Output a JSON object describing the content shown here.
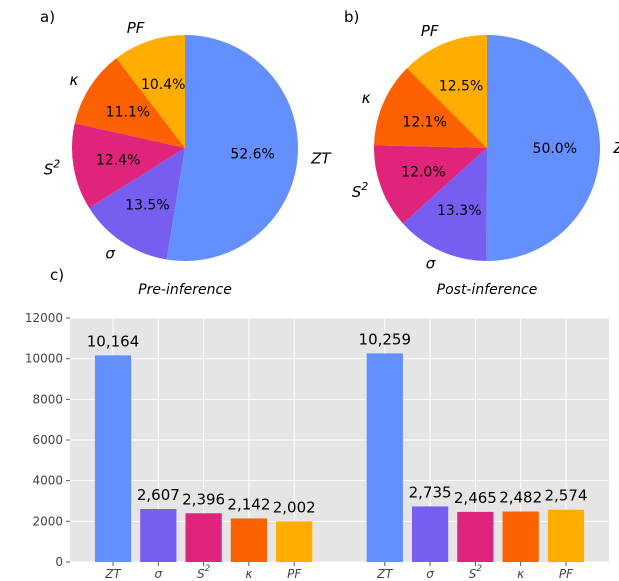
{
  "chart_data": [
    {
      "panel_label": "a)",
      "type": "pie",
      "caption": "Pre-inference",
      "slices": [
        {
          "label": "PF",
          "value": 10.4,
          "pct_text": "10.4%",
          "color": "#ffae00"
        },
        {
          "label": "κ",
          "value": 11.1,
          "pct_text": "11.1%",
          "color": "#fc6100"
        },
        {
          "label": "S",
          "label_sup": "2",
          "value": 12.4,
          "pct_text": "12.4%",
          "color": "#e0247b"
        },
        {
          "label": "σ",
          "value": 13.5,
          "pct_text": "13.5%",
          "color": "#785ef0"
        },
        {
          "label": "ZT",
          "value": 52.6,
          "pct_text": "52.6%",
          "color": "#648fff"
        }
      ]
    },
    {
      "panel_label": "b)",
      "type": "pie",
      "caption": "Post-inference",
      "slices": [
        {
          "label": "PF",
          "value": 12.5,
          "pct_text": "12.5%",
          "color": "#ffae00"
        },
        {
          "label": "κ",
          "value": 12.1,
          "pct_text": "12.1%",
          "color": "#fc6100"
        },
        {
          "label": "S",
          "label_sup": "2",
          "value": 12.0,
          "pct_text": "12.0%",
          "color": "#e0247b"
        },
        {
          "label": "σ",
          "value": 13.3,
          "pct_text": "13.3%",
          "color": "#785ef0"
        },
        {
          "label": "ZT",
          "value": 50.0,
          "pct_text": "50.0%",
          "color": "#648fff"
        }
      ]
    },
    {
      "panel_label": "c)",
      "type": "bar",
      "ylim": [
        0,
        12000
      ],
      "yticks": [
        0,
        2000,
        4000,
        6000,
        8000,
        10000,
        12000
      ],
      "grid": true,
      "groups": [
        {
          "bars": [
            {
              "label": "ZT",
              "value": 10164,
              "value_text": "10,164",
              "color": "#648fff"
            },
            {
              "label": "σ",
              "value": 2607,
              "value_text": "2,607",
              "color": "#785ef0"
            },
            {
              "label": "S",
              "label_sup": "2",
              "value": 2396,
              "value_text": "2,396",
              "color": "#e0247b"
            },
            {
              "label": "κ",
              "value": 2142,
              "value_text": "2,142",
              "color": "#fc6100"
            },
            {
              "label": "PF",
              "value": 2002,
              "value_text": "2,002",
              "color": "#ffae00"
            }
          ]
        },
        {
          "bars": [
            {
              "label": "ZT",
              "value": 10259,
              "value_text": "10,259",
              "color": "#648fff"
            },
            {
              "label": "σ",
              "value": 2735,
              "value_text": "2,735",
              "color": "#785ef0"
            },
            {
              "label": "S",
              "label_sup": "2",
              "value": 2465,
              "value_text": "2,465",
              "color": "#e0247b"
            },
            {
              "label": "κ",
              "value": 2482,
              "value_text": "2,482",
              "color": "#fc6100"
            },
            {
              "label": "PF",
              "value": 2574,
              "value_text": "2,574",
              "color": "#ffae00"
            }
          ]
        }
      ]
    }
  ]
}
